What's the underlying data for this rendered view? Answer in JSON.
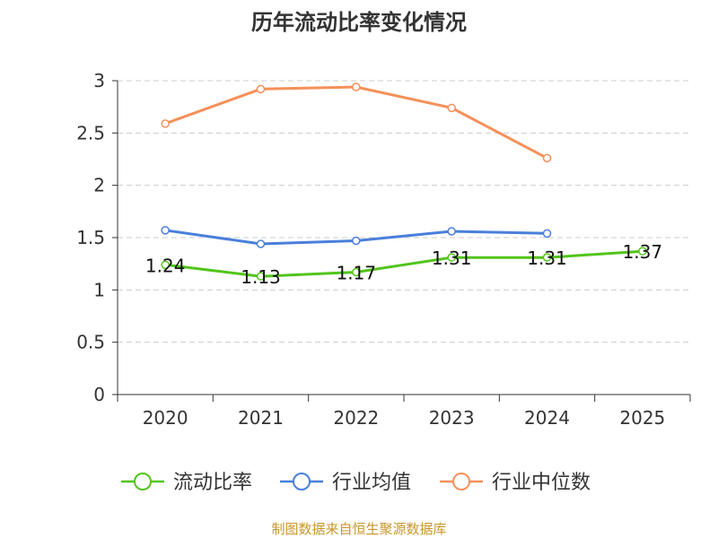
{
  "chart_data": {
    "type": "line",
    "title": "历年流动比率变化情况",
    "categories": [
      "2020",
      "2021",
      "2022",
      "2023",
      "2024",
      "2025"
    ],
    "ylim": [
      0,
      3
    ],
    "yticks": [
      "0",
      "0.5",
      "1",
      "1.5",
      "2",
      "2.5",
      "3"
    ],
    "ytick_values": [
      0,
      0.5,
      1,
      1.5,
      2,
      2.5,
      3
    ],
    "grid": true,
    "legend_position": "bottom",
    "series": [
      {
        "name": "流动比率",
        "color": "#52c41a",
        "values": [
          1.24,
          1.13,
          1.17,
          1.31,
          1.31,
          1.37
        ],
        "labels": [
          "1.24",
          "1.13",
          "1.17",
          "1.31",
          "1.31",
          "1.37"
        ]
      },
      {
        "name": "行业均值",
        "color": "#4a7fdb",
        "values": [
          1.57,
          1.44,
          1.47,
          1.56,
          1.54,
          null
        ]
      },
      {
        "name": "行业中位数",
        "color": "#f5905a",
        "values": [
          2.59,
          2.92,
          2.94,
          2.74,
          2.26,
          null
        ]
      }
    ]
  },
  "source_text": "制图数据来自恒生聚源数据库"
}
